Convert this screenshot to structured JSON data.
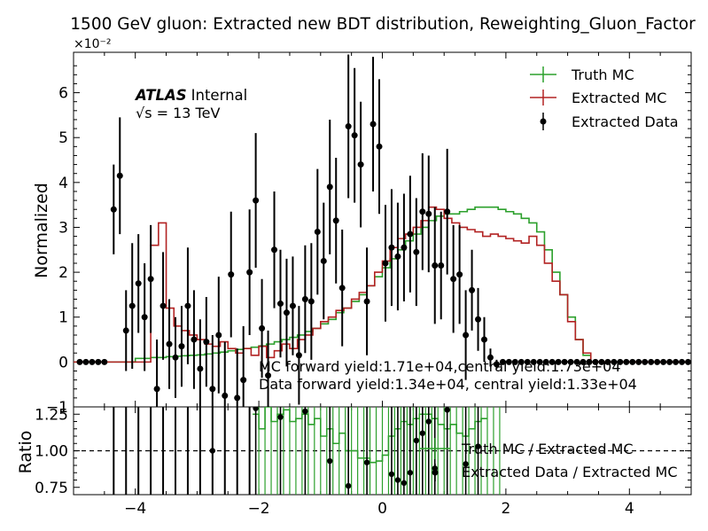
{
  "chart_data": {
    "type": "line",
    "title": "1500 GeV gluon: Extracted new BDT distribution, Reweighting_Gluon_Factor",
    "x_ticks": [
      "−4",
      "−2",
      "0",
      "2",
      "4"
    ],
    "xlim": [
      -5,
      5
    ],
    "main": {
      "ylabel": "Normalized",
      "multiplier": "×10⁻²",
      "ylim": [
        -1,
        6.9
      ],
      "y_ticks": [
        "−1",
        "0",
        "1",
        "2",
        "3",
        "4",
        "5",
        "6"
      ],
      "series": [
        {
          "name": "Truth MC",
          "color": "#2ca02c",
          "style": "step",
          "values": [
            0,
            0,
            0,
            0,
            0,
            0,
            0,
            0,
            0.08,
            0.08,
            0.1,
            0.1,
            0.12,
            0.13,
            0.14,
            0.15,
            0.16,
            0.18,
            0.2,
            0.22,
            0.25,
            0.28,
            0.3,
            0.33,
            0.36,
            0.4,
            0.45,
            0.5,
            0.55,
            0.6,
            0.68,
            0.75,
            0.85,
            0.95,
            1.1,
            1.2,
            1.35,
            1.5,
            1.7,
            1.9,
            2.1,
            2.3,
            2.5,
            2.7,
            2.85,
            3.0,
            3.15,
            3.25,
            3.3,
            3.3,
            3.35,
            3.4,
            3.45,
            3.45,
            3.45,
            3.4,
            3.35,
            3.3,
            3.2,
            3.1,
            2.9,
            2.5,
            2.0,
            1.5,
            1.0,
            0.5,
            0.15,
            0,
            0,
            0,
            0,
            0,
            0,
            0,
            0,
            0,
            0,
            0,
            0,
            0
          ]
        },
        {
          "name": "Extracted MC",
          "color": "#b22222",
          "style": "step",
          "values": [
            0,
            0,
            0,
            0,
            0,
            0,
            0,
            0,
            0,
            0,
            2.6,
            3.1,
            1.2,
            0.8,
            0.7,
            0.6,
            0.5,
            0.4,
            0.35,
            0.45,
            0.3,
            0.2,
            0.3,
            0.15,
            0.35,
            0.1,
            0.25,
            0.4,
            0.3,
            0.5,
            0.6,
            0.75,
            0.9,
            1.0,
            1.15,
            1.2,
            1.4,
            1.55,
            1.7,
            2.0,
            2.25,
            2.55,
            2.75,
            2.85,
            3.0,
            3.15,
            3.45,
            3.4,
            3.2,
            3.1,
            3.0,
            2.95,
            2.9,
            2.8,
            2.85,
            2.8,
            2.75,
            2.7,
            2.65,
            2.8,
            2.6,
            2.2,
            1.8,
            1.5,
            0.9,
            0.5,
            0.2,
            0,
            0,
            0,
            0,
            0,
            0,
            0,
            0,
            0,
            0,
            0,
            0,
            0
          ]
        },
        {
          "name": "Extracted Data",
          "color": "#000000",
          "style": "points",
          "points": [
            {
              "x": -4.9,
              "y": 0,
              "e": 0
            },
            {
              "x": -4.8,
              "y": 0,
              "e": 0
            },
            {
              "x": -4.7,
              "y": 0,
              "e": 0
            },
            {
              "x": -4.6,
              "y": 0,
              "e": 0
            },
            {
              "x": -4.5,
              "y": 0,
              "e": 0
            },
            {
              "x": -4.35,
              "y": 3.4,
              "e": 1.0
            },
            {
              "x": -4.25,
              "y": 4.15,
              "e": 1.3
            },
            {
              "x": -4.15,
              "y": 0.7,
              "e": 0.9
            },
            {
              "x": -4.05,
              "y": 1.25,
              "e": 1.4
            },
            {
              "x": -3.95,
              "y": 1.75,
              "e": 1.1
            },
            {
              "x": -3.85,
              "y": 1.0,
              "e": 1.2
            },
            {
              "x": -3.75,
              "y": 1.85,
              "e": 1.2
            },
            {
              "x": -3.65,
              "y": -0.6,
              "e": 1.1
            },
            {
              "x": -3.55,
              "y": 1.25,
              "e": 1.2
            },
            {
              "x": -3.45,
              "y": 0.4,
              "e": 1.0
            },
            {
              "x": -3.35,
              "y": 0.1,
              "e": 0.9
            },
            {
              "x": -3.25,
              "y": 0.35,
              "e": 0.9
            },
            {
              "x": -3.15,
              "y": 1.25,
              "e": 1.3
            },
            {
              "x": -3.05,
              "y": 0.5,
              "e": 1.1
            },
            {
              "x": -2.95,
              "y": -0.15,
              "e": 1.1
            },
            {
              "x": -2.85,
              "y": 0.45,
              "e": 1.0
            },
            {
              "x": -2.75,
              "y": -0.6,
              "e": 1.2
            },
            {
              "x": -2.65,
              "y": 0.6,
              "e": 1.3
            },
            {
              "x": -2.55,
              "y": -0.75,
              "e": 1.2
            },
            {
              "x": -2.45,
              "y": 1.95,
              "e": 1.4
            },
            {
              "x": -2.35,
              "y": -0.8,
              "e": 1.1
            },
            {
              "x": -2.25,
              "y": -0.4,
              "e": 1.2
            },
            {
              "x": -2.15,
              "y": 2.0,
              "e": 1.4
            },
            {
              "x": -2.05,
              "y": 3.6,
              "e": 1.5
            },
            {
              "x": -1.95,
              "y": 0.75,
              "e": 1.1
            },
            {
              "x": -1.85,
              "y": -0.3,
              "e": 1.0
            },
            {
              "x": -1.75,
              "y": 2.5,
              "e": 1.3
            },
            {
              "x": -1.65,
              "y": 1.3,
              "e": 1.2
            },
            {
              "x": -1.55,
              "y": 1.1,
              "e": 1.2
            },
            {
              "x": -1.45,
              "y": 1.25,
              "e": 1.1
            },
            {
              "x": -1.35,
              "y": 0.15,
              "e": 1.1
            },
            {
              "x": -1.25,
              "y": 1.4,
              "e": 1.2
            },
            {
              "x": -1.15,
              "y": 1.35,
              "e": 1.3
            },
            {
              "x": -1.05,
              "y": 2.9,
              "e": 1.4
            },
            {
              "x": -0.95,
              "y": 2.25,
              "e": 1.3
            },
            {
              "x": -0.85,
              "y": 3.9,
              "e": 1.5
            },
            {
              "x": -0.75,
              "y": 3.15,
              "e": 1.4
            },
            {
              "x": -0.65,
              "y": 1.65,
              "e": 1.3
            },
            {
              "x": -0.55,
              "y": 5.25,
              "e": 1.6
            },
            {
              "x": -0.45,
              "y": 5.05,
              "e": 1.5
            },
            {
              "x": -0.35,
              "y": 4.4,
              "e": 1.4
            },
            {
              "x": -0.25,
              "y": 1.35,
              "e": 1.2
            },
            {
              "x": -0.15,
              "y": 5.3,
              "e": 1.5
            },
            {
              "x": -0.05,
              "y": 4.8,
              "e": 1.5
            },
            {
              "x": 0.05,
              "y": 2.2,
              "e": 1.3
            },
            {
              "x": 0.15,
              "y": 2.55,
              "e": 1.3
            },
            {
              "x": 0.25,
              "y": 2.35,
              "e": 1.2
            },
            {
              "x": 0.35,
              "y": 2.55,
              "e": 1.2
            },
            {
              "x": 0.45,
              "y": 2.85,
              "e": 1.3
            },
            {
              "x": 0.55,
              "y": 2.45,
              "e": 1.2
            },
            {
              "x": 0.65,
              "y": 3.35,
              "e": 1.3
            },
            {
              "x": 0.75,
              "y": 3.3,
              "e": 1.3
            },
            {
              "x": 0.85,
              "y": 2.15,
              "e": 1.3
            },
            {
              "x": 0.95,
              "y": 2.15,
              "e": 1.2
            },
            {
              "x": 1.05,
              "y": 3.35,
              "e": 1.4
            },
            {
              "x": 1.15,
              "y": 1.85,
              "e": 1.2
            },
            {
              "x": 1.25,
              "y": 1.95,
              "e": 1.1
            },
            {
              "x": 1.35,
              "y": 0.6,
              "e": 1.0
            },
            {
              "x": 1.45,
              "y": 1.6,
              "e": 0.9
            },
            {
              "x": 1.55,
              "y": 0.95,
              "e": 0.7
            },
            {
              "x": 1.65,
              "y": 0.5,
              "e": 0.5
            },
            {
              "x": 1.75,
              "y": 0.1,
              "e": 0.2
            },
            {
              "x": 1.85,
              "y": -0.05,
              "e": 0.1
            },
            {
              "x": 1.95,
              "y": 0,
              "e": 0
            },
            {
              "x": 2.05,
              "y": 0,
              "e": 0
            },
            {
              "x": 2.15,
              "y": 0,
              "e": 0
            },
            {
              "x": 2.25,
              "y": 0,
              "e": 0
            },
            {
              "x": 2.35,
              "y": 0,
              "e": 0
            },
            {
              "x": 2.45,
              "y": 0,
              "e": 0
            },
            {
              "x": 2.55,
              "y": 0,
              "e": 0
            },
            {
              "x": 2.65,
              "y": 0,
              "e": 0
            },
            {
              "x": 2.75,
              "y": 0,
              "e": 0
            },
            {
              "x": 2.85,
              "y": 0,
              "e": 0
            },
            {
              "x": 2.95,
              "y": 0,
              "e": 0
            },
            {
              "x": 3.05,
              "y": 0,
              "e": 0
            },
            {
              "x": 3.15,
              "y": 0,
              "e": 0
            },
            {
              "x": 3.25,
              "y": 0,
              "e": 0
            },
            {
              "x": 3.35,
              "y": 0,
              "e": 0
            },
            {
              "x": 3.45,
              "y": 0,
              "e": 0
            },
            {
              "x": 3.55,
              "y": 0,
              "e": 0
            },
            {
              "x": 3.65,
              "y": 0,
              "e": 0
            },
            {
              "x": 3.75,
              "y": 0,
              "e": 0
            },
            {
              "x": 3.85,
              "y": 0,
              "e": 0
            },
            {
              "x": 3.95,
              "y": 0,
              "e": 0
            },
            {
              "x": 4.05,
              "y": 0,
              "e": 0
            },
            {
              "x": 4.15,
              "y": 0,
              "e": 0
            },
            {
              "x": 4.25,
              "y": 0,
              "e": 0
            },
            {
              "x": 4.35,
              "y": 0,
              "e": 0
            },
            {
              "x": 4.45,
              "y": 0,
              "e": 0
            },
            {
              "x": 4.55,
              "y": 0,
              "e": 0
            },
            {
              "x": 4.65,
              "y": 0,
              "e": 0
            },
            {
              "x": 4.75,
              "y": 0,
              "e": 0
            },
            {
              "x": 4.85,
              "y": 0,
              "e": 0
            },
            {
              "x": 4.95,
              "y": 0,
              "e": 0
            }
          ]
        }
      ],
      "annotations": {
        "atlas": "ATLAS",
        "atlas_suffix": "Internal",
        "energy": "√s =  13 TeV",
        "mc_yield": "MC forward yield:1.71e+04,central yield:1.73e+04",
        "data_yield": "Data forward yield:1.34e+04, central yield:1.33e+04"
      },
      "legend_position": "top-right"
    },
    "ratio": {
      "ylabel": "Ratio",
      "ylim": [
        0.7,
        1.3
      ],
      "y_ticks": [
        "0.75",
        "1.00",
        "1.25"
      ],
      "reference": 1.0,
      "series": [
        {
          "name": "Truth MC / Extracted MC",
          "color": "#2ca02c",
          "style": "step",
          "x_start": -2.1,
          "values": [
            1.25,
            1.15,
            1.3,
            1.2,
            1.25,
            1.28,
            1.2,
            1.22,
            1.25,
            1.18,
            1.22,
            1.1,
            1.15,
            1.05,
            1.12,
            1.0,
            1.0,
            0.95,
            0.95,
            0.92,
            0.93,
            0.97,
            1.1,
            1.15,
            1.2,
            1.18,
            1.22,
            1.25,
            1.25,
            1.22,
            1.18,
            1.15,
            1.18,
            1.12,
            1.1,
            1.15,
            1.2,
            1.22
          ]
        },
        {
          "name": "Extracted Data / Extracted MC",
          "color": "#000000",
          "style": "points",
          "points": [
            {
              "x": -2.75,
              "y": 1.0
            },
            {
              "x": -2.05,
              "y": 1.29
            },
            {
              "x": -1.65,
              "y": 1.23
            },
            {
              "x": -1.25,
              "y": 1.27
            },
            {
              "x": -0.85,
              "y": 0.93
            },
            {
              "x": -0.55,
              "y": 0.76
            },
            {
              "x": -0.25,
              "y": 0.92
            },
            {
              "x": 0.15,
              "y": 0.84
            },
            {
              "x": 0.25,
              "y": 0.8
            },
            {
              "x": 0.35,
              "y": 0.78
            },
            {
              "x": 0.45,
              "y": 0.85
            },
            {
              "x": 0.55,
              "y": 1.07
            },
            {
              "x": 0.65,
              "y": 1.12
            },
            {
              "x": 0.75,
              "y": 1.2
            },
            {
              "x": 0.85,
              "y": 0.88
            },
            {
              "x": 1.05,
              "y": 1.28
            },
            {
              "x": 1.35,
              "y": 0.91
            },
            {
              "x": 1.55,
              "y": 1.03
            }
          ]
        }
      ]
    }
  }
}
